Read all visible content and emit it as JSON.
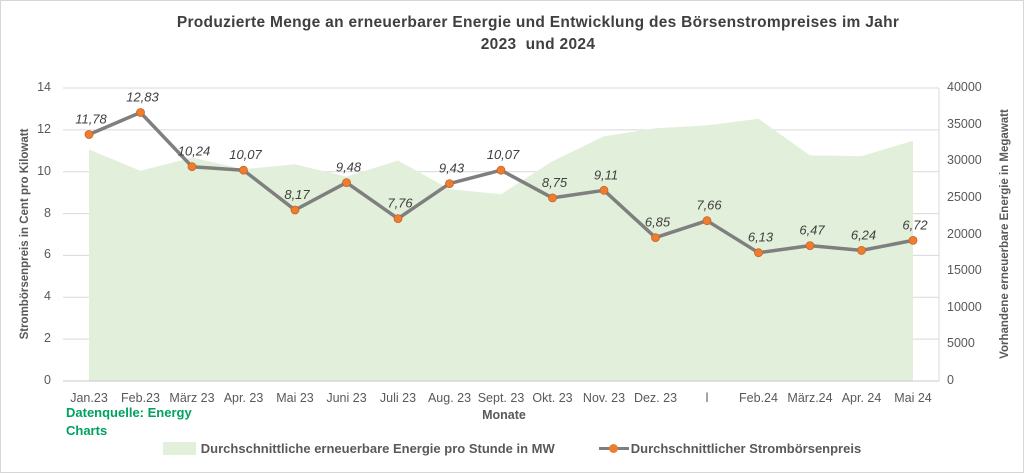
{
  "title": {
    "line1": "Produzierte Menge an erneuerbarer Energie und Entwicklung des Börsenstrompreises im Jahr",
    "line2": "2023  und 2024"
  },
  "source_note": {
    "text": "Datenquelle: Energy Charts"
  },
  "chart_data": {
    "type": "combo (area + line, dual axis)",
    "title": "Produzierte Menge an erneuerbarer Energie und Entwicklung des Börsenstrompreises im Jahr 2023 und 2024",
    "categories": [
      "Jan.23",
      "Feb.23",
      "März 23",
      "Apr. 23",
      "Mai 23",
      "Juni 23",
      "Juli 23",
      "Aug. 23",
      "Sept. 23",
      "Okt. 23",
      "Nov. 23",
      "Dez. 23",
      "l",
      "Feb.24",
      "März.24",
      "Apr. 24",
      "Mai 24"
    ],
    "series": [
      {
        "name": "Durchschnittliche erneuerbare Energie pro Stunde in MW",
        "type": "area",
        "axis": "right",
        "values": [
          31600,
          28700,
          30500,
          28900,
          29600,
          27900,
          30100,
          26200,
          25500,
          30000,
          33400,
          34500,
          34900,
          35800,
          30800,
          30700,
          32800
        ]
      },
      {
        "name": "Durchschnittlicher Strombörsenpreis",
        "type": "line",
        "axis": "left",
        "values": [
          11.78,
          12.83,
          10.24,
          10.07,
          8.17,
          9.48,
          7.76,
          9.43,
          10.07,
          8.75,
          9.11,
          6.85,
          7.66,
          6.13,
          6.47,
          6.24,
          6.72
        ],
        "labels": [
          "11,78",
          "12,83",
          "10,24",
          "10,07",
          "8,17",
          "9,48",
          "7,76",
          "9,43",
          "10,07",
          "8,75",
          "9,11",
          "6,85",
          "7,66",
          "6,13",
          "6,47",
          "6,24",
          "6,72"
        ]
      }
    ],
    "x_axis": {
      "title": "Monate"
    },
    "left_axis": {
      "title": "Strombörsenpreis in Cent pro Kilowatt",
      "min": 0,
      "max": 14,
      "ticks": [
        0,
        2,
        4,
        6,
        8,
        10,
        12,
        14
      ]
    },
    "right_axis": {
      "title": "Vorhandene erneuerbare Energie in Megawatt",
      "min": 0,
      "max": 40000,
      "ticks": [
        0,
        5000,
        10000,
        15000,
        20000,
        25000,
        30000,
        35000,
        40000
      ]
    },
    "grid": "horizontal",
    "legend_position": "bottom"
  },
  "colors": {
    "area_fill": "#e2efda",
    "line": "#7f7f7f",
    "marker": "#ed7d31",
    "marker_border": "#c9641f",
    "gridline": "#d9d9d9",
    "axis_line": "#c9c9c9",
    "tick_text": "#595959",
    "data_label": "#404040",
    "title_text": "#3f3f3f",
    "source_green": "#00a160"
  }
}
